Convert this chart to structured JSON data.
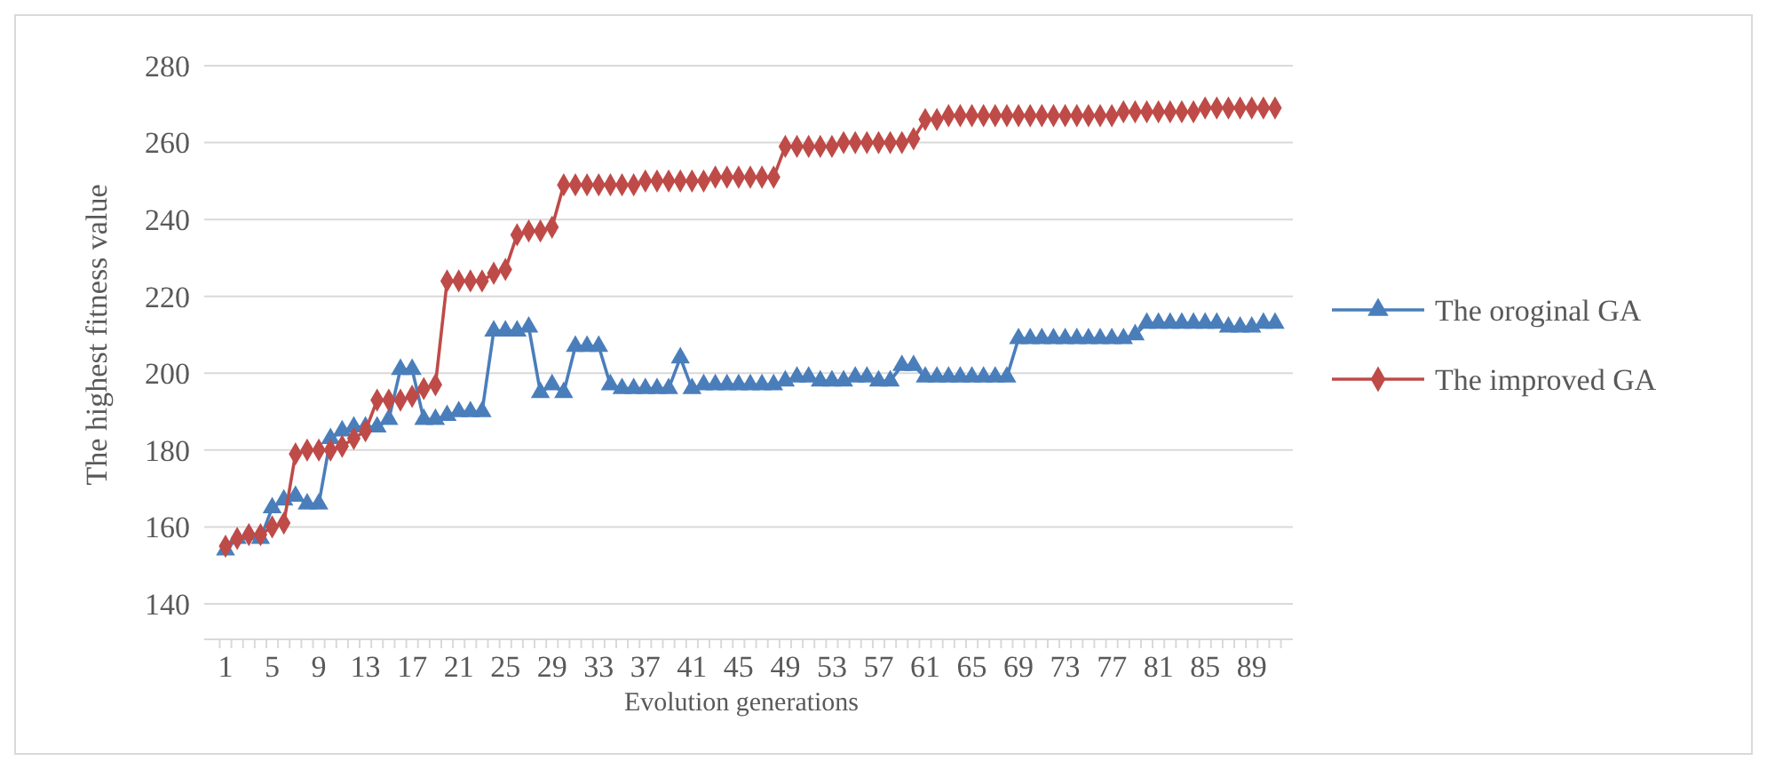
{
  "chart_data": {
    "type": "line",
    "xlabel": "Evolution generations",
    "ylabel": "The highest fitness value",
    "categories": [
      "1",
      null,
      null,
      null,
      "5",
      null,
      null,
      null,
      "9",
      null,
      null,
      null,
      "13",
      null,
      null,
      null,
      "17",
      null,
      null,
      null,
      "21",
      null,
      null,
      null,
      "25",
      null,
      null,
      null,
      "29",
      null,
      null,
      null,
      "33",
      null,
      null,
      null,
      "37",
      null,
      null,
      null,
      "41",
      null,
      null,
      null,
      "45",
      null,
      null,
      null,
      "49",
      null,
      null,
      null,
      "53",
      null,
      null,
      null,
      "57",
      null,
      null,
      null,
      "61",
      null,
      null,
      null,
      "65",
      null,
      null,
      null,
      "69",
      null,
      null,
      null,
      "73",
      null,
      null,
      null,
      "77",
      null,
      null,
      null,
      "81",
      null,
      null,
      null,
      "85",
      null,
      null,
      null,
      "89",
      null,
      null
    ],
    "series": [
      {
        "name": "The oroginal GA",
        "color": "#4a7ebb",
        "marker": "triangle",
        "values": [
          154,
          157,
          158,
          157,
          165,
          167,
          168,
          166,
          166,
          183,
          185,
          186,
          186,
          186,
          188,
          201,
          201,
          188,
          188,
          189,
          190,
          190,
          190,
          211,
          211,
          211,
          212,
          195,
          197,
          195,
          207,
          207,
          207,
          197,
          196,
          196,
          196,
          196,
          196,
          204,
          196,
          197,
          197,
          197,
          197,
          197,
          197,
          197,
          198,
          199,
          199,
          198,
          198,
          198,
          199,
          199,
          198,
          198,
          202,
          202,
          199,
          199,
          199,
          199,
          199,
          199,
          199,
          199,
          209,
          209,
          209,
          209,
          209,
          209,
          209,
          209,
          209,
          209,
          210,
          213,
          213,
          213,
          213,
          213,
          213,
          213,
          212,
          212,
          212,
          213,
          213
        ]
      },
      {
        "name": "The improved GA",
        "color": "#be4b48",
        "marker": "diamond",
        "values": [
          155,
          157,
          158,
          158,
          160,
          161,
          179,
          180,
          180,
          180,
          181,
          183,
          185,
          193,
          193,
          193,
          194,
          196,
          197,
          224,
          224,
          224,
          224,
          226,
          227,
          236,
          237,
          237,
          238,
          249,
          249,
          249,
          249,
          249,
          249,
          249,
          250,
          250,
          250,
          250,
          250,
          250,
          251,
          251,
          251,
          251,
          251,
          251,
          259,
          259,
          259,
          259,
          259,
          260,
          260,
          260,
          260,
          260,
          260,
          261,
          266,
          266,
          267,
          267,
          267,
          267,
          267,
          267,
          267,
          267,
          267,
          267,
          267,
          267,
          267,
          267,
          267,
          268,
          268,
          268,
          268,
          268,
          268,
          268,
          269,
          269,
          269,
          269,
          269,
          269,
          269
        ]
      }
    ],
    "ylim": [
      140,
      280
    ],
    "yticks": [
      140,
      160,
      180,
      200,
      220,
      240,
      260,
      280
    ],
    "grid": "y",
    "legend": "right",
    "line_style": "solid"
  }
}
